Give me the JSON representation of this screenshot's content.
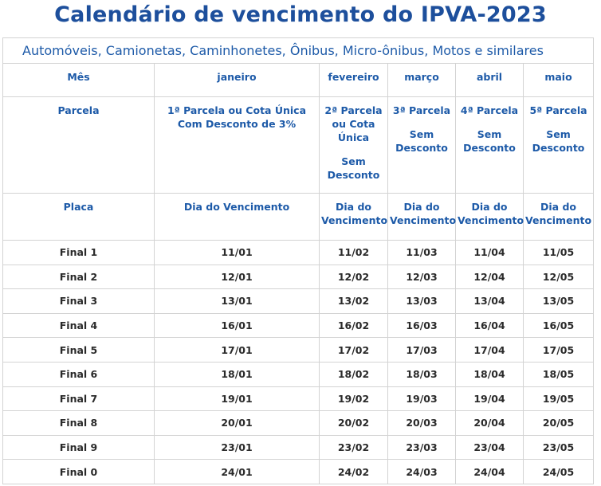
{
  "title": "Calendário de vencimento do IPVA-2023",
  "table": {
    "caption": "Automóveis, Camionetas, Caminhonetes, Ônibus, Micro-ônibus, Motos e similares",
    "month_row": [
      "Mês",
      "janeiro",
      "fevereiro",
      "março",
      "abril",
      "maio"
    ],
    "installment_row": [
      [
        "Parcela"
      ],
      [
        "1ª Parcela ou Cota Única Com Desconto de 3%"
      ],
      [
        "2ª Parcela ou Cota Única",
        "Sem Desconto"
      ],
      [
        "3ª Parcela",
        "Sem Desconto"
      ],
      [
        "4ª Parcela",
        "Sem Desconto"
      ],
      [
        "5ª Parcela",
        "Sem Desconto"
      ]
    ],
    "due_row": [
      "Placa",
      "Dia do Vencimento",
      "Dia do Vencimento",
      "Dia do Vencimento",
      "Dia do Vencimento",
      "Dia do Vencimento"
    ],
    "rows": [
      [
        "Final 1",
        "11/01",
        "11/02",
        "11/03",
        "11/04",
        "11/05"
      ],
      [
        "Final 2",
        "12/01",
        "12/02",
        "12/03",
        "12/04",
        "12/05"
      ],
      [
        "Final 3",
        "13/01",
        "13/02",
        "13/03",
        "13/04",
        "13/05"
      ],
      [
        "Final 4",
        "16/01",
        "16/02",
        "16/03",
        "16/04",
        "16/05"
      ],
      [
        "Final 5",
        "17/01",
        "17/02",
        "17/03",
        "17/04",
        "17/05"
      ],
      [
        "Final 6",
        "18/01",
        "18/02",
        "18/03",
        "18/04",
        "18/05"
      ],
      [
        "Final 7",
        "19/01",
        "19/02",
        "19/03",
        "19/04",
        "19/05"
      ],
      [
        "Final 8",
        "20/01",
        "20/02",
        "20/03",
        "20/04",
        "20/05"
      ],
      [
        "Final 9",
        "23/01",
        "23/02",
        "23/03",
        "23/04",
        "23/05"
      ],
      [
        "Final 0",
        "24/01",
        "24/02",
        "24/03",
        "24/04",
        "24/05"
      ]
    ]
  }
}
